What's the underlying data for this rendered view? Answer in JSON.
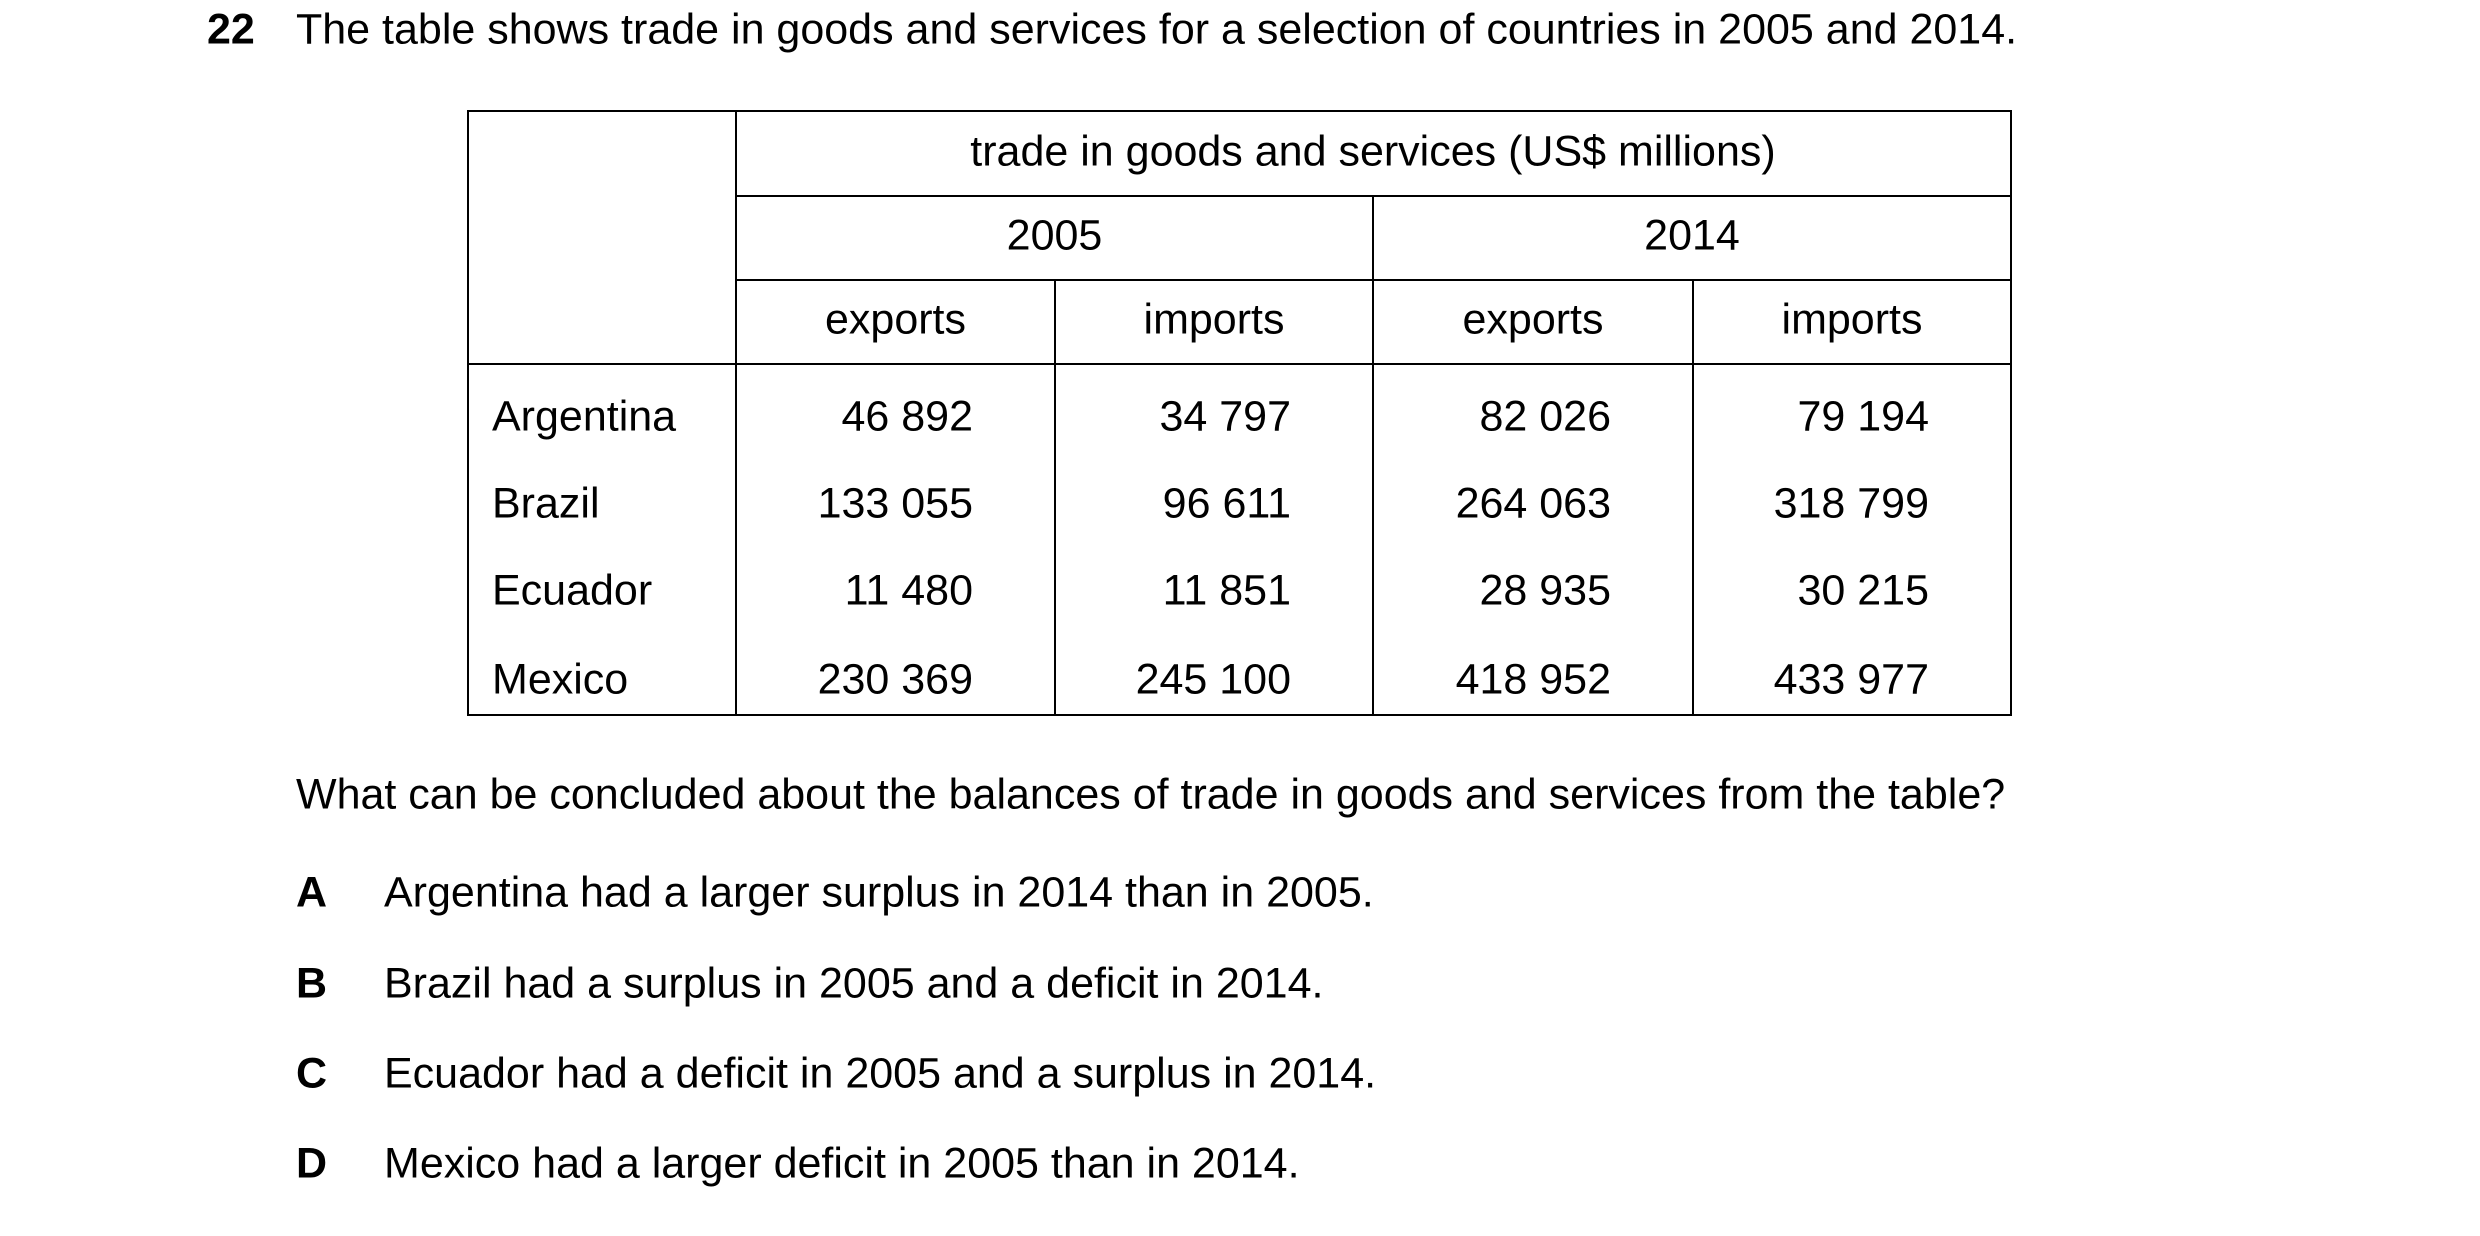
{
  "question": {
    "number": "22",
    "stem": "The table shows trade in goods and services for a selection of countries in 2005 and 2014.",
    "prompt": "What can be concluded about the balances of trade in goods and services from the table?",
    "options": [
      {
        "letter": "A",
        "text": "Argentina had a larger surplus in 2014 than in 2005."
      },
      {
        "letter": "B",
        "text": "Brazil had a surplus in 2005 and a deficit in 2014."
      },
      {
        "letter": "C",
        "text": "Ecuador had a deficit in 2005 and a surplus in 2014."
      },
      {
        "letter": "D",
        "text": "Mexico had a larger deficit in 2005 than in 2014."
      }
    ]
  },
  "table": {
    "header": "trade in goods and services (US$ millions)",
    "years": [
      "2005",
      "2014"
    ],
    "subheaders": [
      "exports",
      "imports",
      "exports",
      "imports"
    ],
    "rows": [
      {
        "country": "Argentina",
        "values": [
          "46 892",
          "34 797",
          "82 026",
          "79 194"
        ]
      },
      {
        "country": "Brazil",
        "values": [
          "133 055",
          "96 611",
          "264 063",
          "318 799"
        ]
      },
      {
        "country": "Ecuador",
        "values": [
          "11 480",
          "11 851",
          "28 935",
          "30 215"
        ]
      },
      {
        "country": "Mexico",
        "values": [
          "230 369",
          "245 100",
          "418 952",
          "433 977"
        ]
      }
    ]
  }
}
